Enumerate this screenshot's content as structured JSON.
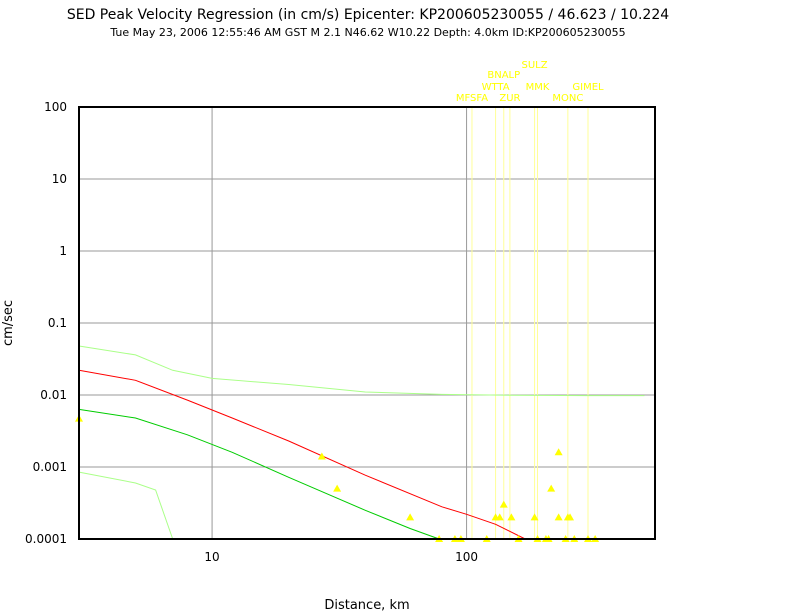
{
  "chart_data": {
    "type": "scatter",
    "title": "SED Peak Velocity Regression (in cm/s) Epicenter: KP200605230055 / 46.623 / 10.224",
    "subtitle": "Tue May 23, 2006 12:55:46 AM GST   M 2.1   N46.62 W10.22   Depth: 4.0km   ID:KP200605230055",
    "xlabel": "Distance, km",
    "ylabel": "cm/sec",
    "x_scale": "log",
    "y_scale": "log",
    "xlim": [
      3,
      550
    ],
    "ylim": [
      0.0001,
      100
    ],
    "x_ticks": [
      {
        "value": 10,
        "label": "10"
      },
      {
        "value": 100,
        "label": "100"
      }
    ],
    "y_ticks": [
      {
        "value": 100,
        "label": "100"
      },
      {
        "value": 10,
        "label": "10"
      },
      {
        "value": 1,
        "label": "1"
      },
      {
        "value": 0.1,
        "label": "0.1"
      },
      {
        "value": 0.01,
        "label": "0.01"
      },
      {
        "value": 0.001,
        "label": "0.001"
      },
      {
        "value": 0.0001,
        "label": "0.0001"
      }
    ],
    "grid": true,
    "colors": {
      "regression": "#ff0000",
      "lower": "#00cc00",
      "band": "#aaff88",
      "points": "#ffff00",
      "station_lines": "#ffff99",
      "grid": "#999999",
      "frame": "#000000"
    },
    "curves": {
      "regression": [
        [
          3,
          0.022
        ],
        [
          5,
          0.016
        ],
        [
          8,
          0.0085
        ],
        [
          12,
          0.0048
        ],
        [
          20,
          0.0023
        ],
        [
          40,
          0.00077
        ],
        [
          80,
          0.00028
        ],
        [
          100,
          0.00022
        ],
        [
          130,
          0.00016
        ],
        [
          170,
          0.0001
        ]
      ],
      "lower": [
        [
          3,
          0.0063
        ],
        [
          5,
          0.0048
        ],
        [
          8,
          0.0028
        ],
        [
          12,
          0.0016
        ],
        [
          20,
          0.00072
        ],
        [
          40,
          0.00025
        ],
        [
          60,
          0.00014
        ],
        [
          78,
          0.0001
        ]
      ],
      "upper_band": [
        [
          3,
          0.048
        ],
        [
          5,
          0.036
        ],
        [
          7,
          0.022
        ],
        [
          10,
          0.017
        ],
        [
          20,
          0.014
        ],
        [
          40,
          0.011
        ],
        [
          80,
          0.0102
        ],
        [
          150,
          0.0099
        ],
        [
          300,
          0.0098
        ],
        [
          500,
          0.0098
        ]
      ],
      "lower_band": [
        [
          3,
          0.00085
        ],
        [
          5,
          0.0006
        ],
        [
          6,
          0.00048
        ],
        [
          7,
          0.0001
        ]
      ]
    },
    "points": [
      [
        3,
        0.0047
      ],
      [
        27,
        0.0014
      ],
      [
        31,
        0.0005
      ],
      [
        60,
        0.0002
      ],
      [
        78,
        0.0001
      ],
      [
        90,
        0.0001
      ],
      [
        95,
        0.0001
      ],
      [
        120,
        0.0001
      ],
      [
        130,
        0.0002
      ],
      [
        135,
        0.0002
      ],
      [
        140,
        0.0003
      ],
      [
        150,
        0.0002
      ],
      [
        160,
        0.0001
      ],
      [
        185,
        0.0002
      ],
      [
        190,
        0.0001
      ],
      [
        205,
        0.0001
      ],
      [
        210,
        0.0001
      ],
      [
        215,
        0.0005
      ],
      [
        230,
        0.0016
      ],
      [
        230,
        0.0002
      ],
      [
        245,
        0.0001
      ],
      [
        250,
        0.0002
      ],
      [
        255,
        0.0002
      ],
      [
        265,
        0.0001
      ],
      [
        300,
        0.0001
      ],
      [
        320,
        0.0001
      ]
    ],
    "stations": [
      {
        "name": "MFSFA",
        "x": 105,
        "label_y": 2e-05
      },
      {
        "name": "WTTA",
        "x": 130,
        "label_y": 2e-05
      },
      {
        "name": "BNALP",
        "x": 140,
        "label_y": 2e-05
      },
      {
        "name": "ZUR",
        "x": 148,
        "label_y": 2e-05
      },
      {
        "name": "SULZ",
        "x": 185,
        "label_y": 2e-05
      },
      {
        "name": "MMK",
        "x": 190,
        "label_y": 2e-05
      },
      {
        "name": "MONC",
        "x": 250,
        "label_y": 2e-05
      },
      {
        "name": "GIMEL",
        "x": 300,
        "label_y": 2e-05
      }
    ]
  }
}
